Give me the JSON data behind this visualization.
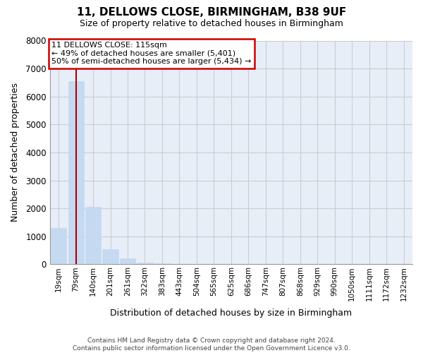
{
  "title": "11, DELLOWS CLOSE, BIRMINGHAM, B38 9UF",
  "subtitle": "Size of property relative to detached houses in Birmingham",
  "xlabel": "Distribution of detached houses by size in Birmingham",
  "ylabel": "Number of detached properties",
  "annotation_title": "11 DELLOWS CLOSE: 115sqm",
  "annotation_line2": "← 49% of detached houses are smaller (5,401)",
  "annotation_line3": "50% of semi-detached houses are larger (5,434) →",
  "footer1": "Contains HM Land Registry data © Crown copyright and database right 2024.",
  "footer2": "Contains public sector information licensed under the Open Government Licence v3.0.",
  "categories": [
    "19sqm",
    "79sqm",
    "140sqm",
    "201sqm",
    "261sqm",
    "322sqm",
    "383sqm",
    "443sqm",
    "504sqm",
    "565sqm",
    "625sqm",
    "686sqm",
    "747sqm",
    "807sqm",
    "868sqm",
    "929sqm",
    "990sqm",
    "1050sqm",
    "1111sqm",
    "1172sqm",
    "1232sqm"
  ],
  "values": [
    1300,
    6550,
    2050,
    550,
    200,
    70,
    30,
    15,
    8,
    4,
    4,
    3,
    3,
    2,
    2,
    2,
    1,
    1,
    1,
    1,
    1
  ],
  "bar_color": "#c5d9f1",
  "bar_edge_color": "#c5d9f1",
  "vline_index": 1,
  "vline_color": "#aa0000",
  "annotation_box_color": "#cc0000",
  "ylim": [
    0,
    8000
  ],
  "yticks": [
    0,
    1000,
    2000,
    3000,
    4000,
    5000,
    6000,
    7000,
    8000
  ],
  "grid_color": "#cccccc",
  "background_color": "#ffffff",
  "plot_bg_color": "#e8eef8"
}
